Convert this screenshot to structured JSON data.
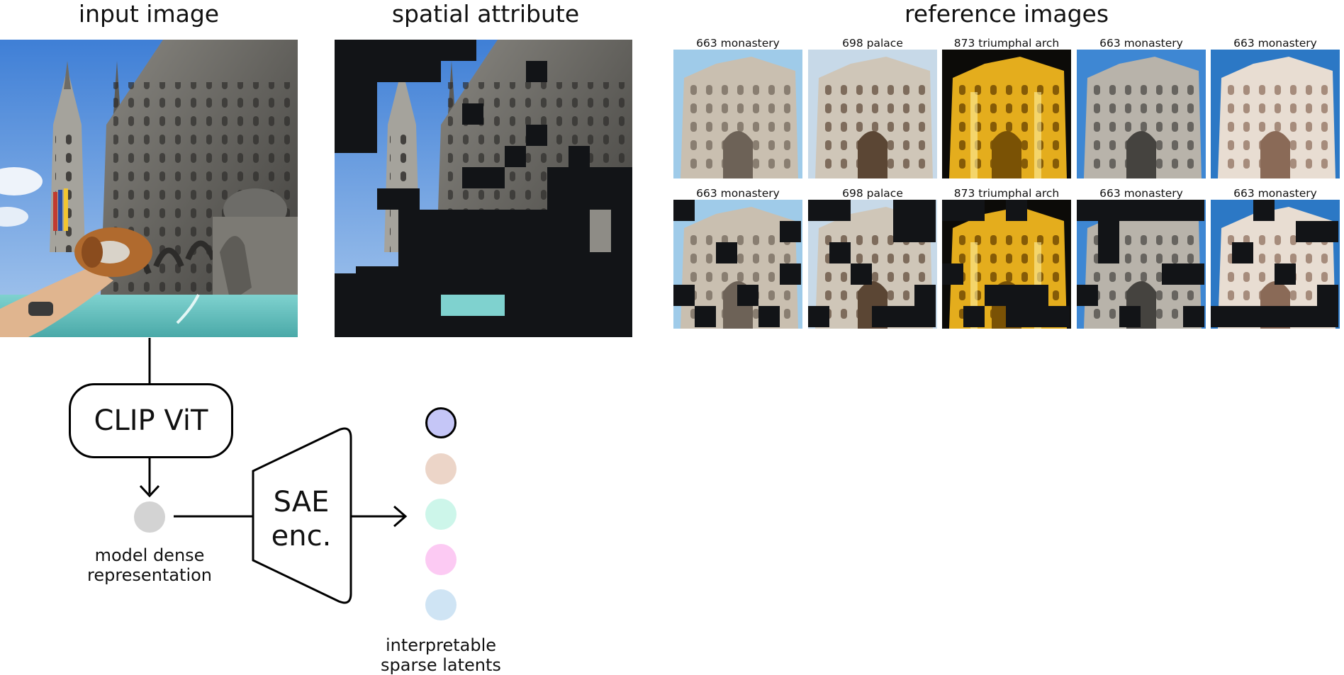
{
  "titles": {
    "input": "input image",
    "spatial": "spatial attribute",
    "reference": "reference images"
  },
  "reference_images": {
    "row1": [
      {
        "caption": "663 monastery",
        "scene": "monastery-stone"
      },
      {
        "caption": "698 palace",
        "scene": "palace-balcony"
      },
      {
        "caption": "873 triumphal arch",
        "scene": "arch-night"
      },
      {
        "caption": "663 monastery",
        "scene": "monastery-cloister"
      },
      {
        "caption": "663 monastery",
        "scene": "monastery-facade"
      }
    ],
    "row2": [
      {
        "caption": "663 monastery",
        "scene": "monastery-stone"
      },
      {
        "caption": "698 palace",
        "scene": "palace-balcony"
      },
      {
        "caption": "873 triumphal arch",
        "scene": "arch-night"
      },
      {
        "caption": "663 monastery",
        "scene": "monastery-cloister"
      },
      {
        "caption": "663 monastery",
        "scene": "monastery-facade"
      }
    ]
  },
  "pipeline": {
    "model_box": "CLIP ViT",
    "encoder_line1": "SAE",
    "encoder_line2": "enc.",
    "dense_label_line1": "model dense",
    "dense_label_line2": "representation",
    "latents_label_line1": "interpretable",
    "latents_label_line2": "sparse latents"
  },
  "colors": {
    "dense_node": "#d3d3d3",
    "latent_active": "#c5c6f7",
    "latent_2": "#ecd5c8",
    "latent_3": "#cdf6ea",
    "latent_4": "#fccaf3",
    "latent_5": "#cfe4f4",
    "mask": "#121417"
  }
}
